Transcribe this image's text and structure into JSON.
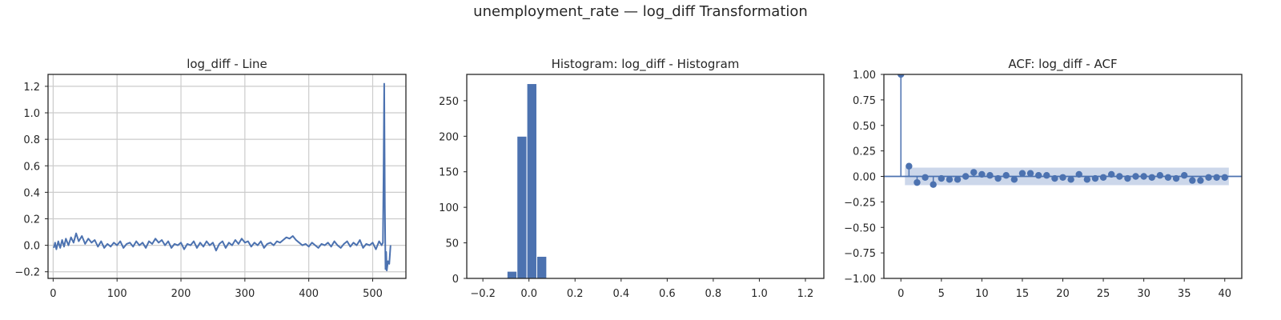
{
  "figure": {
    "title": "unemployment_rate — log_diff Transformation"
  },
  "colors": {
    "series": "#4c72b0",
    "grid": "#cccccc",
    "axes": "#262626",
    "ci_band": "#c6d3e8"
  },
  "chart_data": [
    {
      "id": "line",
      "type": "line",
      "title": "log_diff - Line",
      "xlabel": "",
      "ylabel": "",
      "xlim": [
        -8,
        552
      ],
      "ylim": [
        -0.25,
        1.29
      ],
      "grid": true,
      "x_ticks": [
        0,
        100,
        200,
        300,
        400,
        500
      ],
      "y_ticks": [
        -0.2,
        0.0,
        0.2,
        0.4,
        0.6,
        0.8,
        1.0,
        1.2
      ],
      "y_tick_labels": [
        "−0.2",
        "0.0",
        "0.2",
        "0.4",
        "0.6",
        "0.8",
        "1.0",
        "1.2"
      ],
      "x": [
        1,
        3,
        5,
        8,
        11,
        14,
        17,
        20,
        24,
        28,
        32,
        36,
        40,
        45,
        50,
        55,
        60,
        65,
        70,
        75,
        80,
        85,
        90,
        95,
        100,
        105,
        110,
        115,
        120,
        125,
        130,
        135,
        140,
        145,
        150,
        155,
        160,
        165,
        170,
        175,
        180,
        185,
        190,
        195,
        200,
        205,
        210,
        215,
        220,
        225,
        230,
        235,
        240,
        245,
        250,
        255,
        260,
        265,
        270,
        275,
        280,
        285,
        290,
        295,
        300,
        305,
        310,
        315,
        320,
        325,
        330,
        335,
        340,
        345,
        350,
        355,
        360,
        365,
        370,
        375,
        380,
        385,
        390,
        395,
        400,
        405,
        410,
        415,
        420,
        425,
        430,
        435,
        440,
        445,
        450,
        455,
        460,
        465,
        470,
        475,
        480,
        485,
        490,
        495,
        500,
        505,
        510,
        514,
        516,
        517,
        518,
        519,
        520,
        521,
        522,
        524,
        526,
        528
      ],
      "y": [
        -0.02,
        0.02,
        -0.03,
        0.03,
        -0.02,
        0.04,
        -0.01,
        0.05,
        0.0,
        0.06,
        0.02,
        0.09,
        0.03,
        0.07,
        0.01,
        0.05,
        0.02,
        0.04,
        -0.01,
        0.03,
        -0.02,
        0.01,
        -0.01,
        0.02,
        0.0,
        0.03,
        -0.02,
        0.01,
        0.02,
        -0.01,
        0.03,
        0.0,
        0.02,
        -0.02,
        0.03,
        0.01,
        0.05,
        0.02,
        0.04,
        0.0,
        0.03,
        -0.02,
        0.01,
        0.0,
        0.02,
        -0.03,
        0.01,
        0.0,
        0.03,
        -0.02,
        0.02,
        -0.01,
        0.03,
        0.0,
        0.02,
        -0.04,
        0.01,
        0.03,
        -0.02,
        0.02,
        0.0,
        0.04,
        0.01,
        0.05,
        0.02,
        0.03,
        -0.01,
        0.02,
        0.0,
        0.03,
        -0.02,
        0.01,
        0.02,
        0.0,
        0.03,
        0.02,
        0.04,
        0.06,
        0.05,
        0.07,
        0.04,
        0.02,
        0.0,
        0.01,
        -0.01,
        0.02,
        0.0,
        -0.02,
        0.01,
        0.0,
        0.02,
        -0.01,
        0.03,
        0.0,
        -0.02,
        0.01,
        0.03,
        -0.01,
        0.02,
        0.0,
        0.04,
        -0.02,
        0.01,
        0.0,
        0.02,
        -0.03,
        0.03,
        0.0,
        0.02,
        0.55,
        1.22,
        0.3,
        -0.18,
        -0.05,
        -0.19,
        -0.12,
        -0.14,
        0.0
      ]
    },
    {
      "id": "hist",
      "type": "bar",
      "title": "Histogram: log_diff - Histogram",
      "xlabel": "",
      "ylabel": "",
      "xlim": [
        -0.27,
        1.28
      ],
      "ylim": [
        0,
        287
      ],
      "grid": false,
      "x_ticks": [
        -0.2,
        0.0,
        0.2,
        0.4,
        0.6,
        0.8,
        1.0,
        1.2
      ],
      "x_tick_labels": [
        "−0.2",
        "0.0",
        "0.2",
        "0.4",
        "0.6",
        "0.8",
        "1.0",
        "1.2"
      ],
      "y_ticks": [
        0,
        50,
        100,
        150,
        200,
        250
      ],
      "bin_edges": [
        -0.095,
        -0.052,
        -0.009,
        0.034,
        0.077
      ],
      "values": [
        10,
        200,
        274,
        31
      ]
    },
    {
      "id": "acf",
      "type": "scatter",
      "title": "ACF: log_diff - ACF",
      "xlabel": "",
      "ylabel": "",
      "xlim": [
        -2.1,
        42.1
      ],
      "ylim": [
        -1.0,
        1.0
      ],
      "grid": false,
      "x_ticks": [
        0,
        5,
        10,
        15,
        20,
        25,
        30,
        35,
        40
      ],
      "y_ticks": [
        -1.0,
        -0.75,
        -0.5,
        -0.25,
        0.0,
        0.25,
        0.5,
        0.75,
        1.0
      ],
      "y_tick_labels": [
        "−1.00",
        "−0.75",
        "−0.50",
        "−0.25",
        "0.00",
        "0.25",
        "0.50",
        "0.75",
        "1.00"
      ],
      "confidence_band": 0.086,
      "lags": [
        0,
        1,
        2,
        3,
        4,
        5,
        6,
        7,
        8,
        9,
        10,
        11,
        12,
        13,
        14,
        15,
        16,
        17,
        18,
        19,
        20,
        21,
        22,
        23,
        24,
        25,
        26,
        27,
        28,
        29,
        30,
        31,
        32,
        33,
        34,
        35,
        36,
        37,
        38,
        39,
        40
      ],
      "values": [
        1.0,
        0.1,
        -0.06,
        -0.01,
        -0.08,
        -0.02,
        -0.03,
        -0.03,
        0.0,
        0.04,
        0.02,
        0.01,
        -0.02,
        0.01,
        -0.03,
        0.03,
        0.03,
        0.01,
        0.01,
        -0.02,
        -0.01,
        -0.03,
        0.02,
        -0.03,
        -0.02,
        -0.01,
        0.02,
        0.0,
        -0.02,
        0.0,
        0.0,
        -0.01,
        0.01,
        -0.01,
        -0.02,
        0.01,
        -0.04,
        -0.04,
        -0.01,
        -0.01,
        -0.01
      ]
    }
  ]
}
